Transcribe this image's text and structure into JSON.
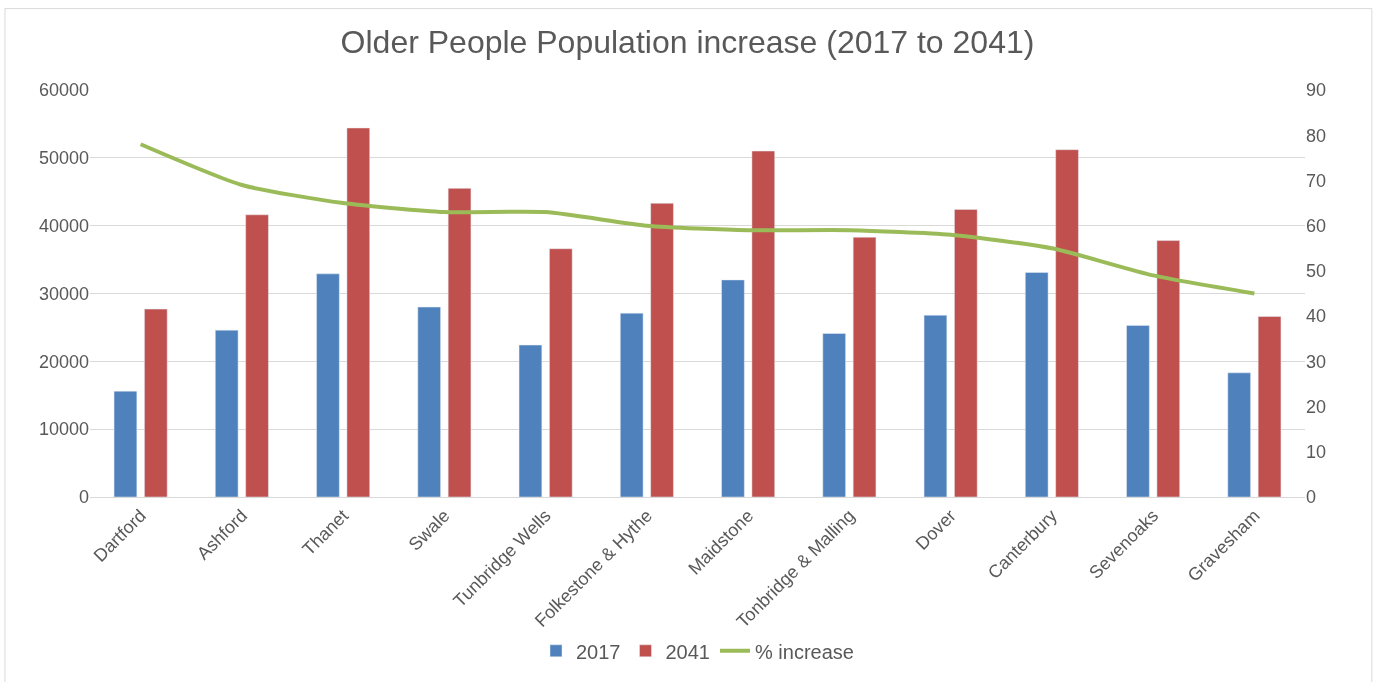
{
  "chart_data": {
    "type": "bar",
    "title": "Older People Population increase (2017 to 2041)",
    "categories": [
      "Dartford",
      "Ashford",
      "Thanet",
      "Swale",
      "Tunbridge Wells",
      "Folkestone & Hythe",
      "Maidstone",
      "Tonbridge & Malling",
      "Dover",
      "Canterbury",
      "Sevenoaks",
      "Gravesham"
    ],
    "series": [
      {
        "name": "2017",
        "color": "#4f81bd",
        "values": [
          15600,
          24600,
          32900,
          28000,
          22400,
          27100,
          32000,
          24100,
          26800,
          33100,
          25300,
          18300
        ]
      },
      {
        "name": "2041",
        "color": "#c0504d",
        "values": [
          27700,
          41600,
          54400,
          45500,
          36600,
          43300,
          51000,
          38300,
          42400,
          51200,
          37800,
          26600
        ]
      },
      {
        "name": "% increase",
        "color": "#9bbb59",
        "type": "line",
        "axis": "y2",
        "values": [
          78,
          69,
          65,
          63,
          63,
          60,
          59,
          59,
          58,
          55,
          49,
          45
        ]
      }
    ],
    "ylim": [
      0,
      60000
    ],
    "yticks": [
      0,
      10000,
      20000,
      30000,
      40000,
      50000,
      60000
    ],
    "y2lim": [
      0,
      90
    ],
    "y2ticks": [
      0,
      10,
      20,
      30,
      40,
      50,
      60,
      70,
      80,
      90
    ],
    "grid": "y",
    "legend": "bottom",
    "marker": "none",
    "line_style": "solid"
  }
}
